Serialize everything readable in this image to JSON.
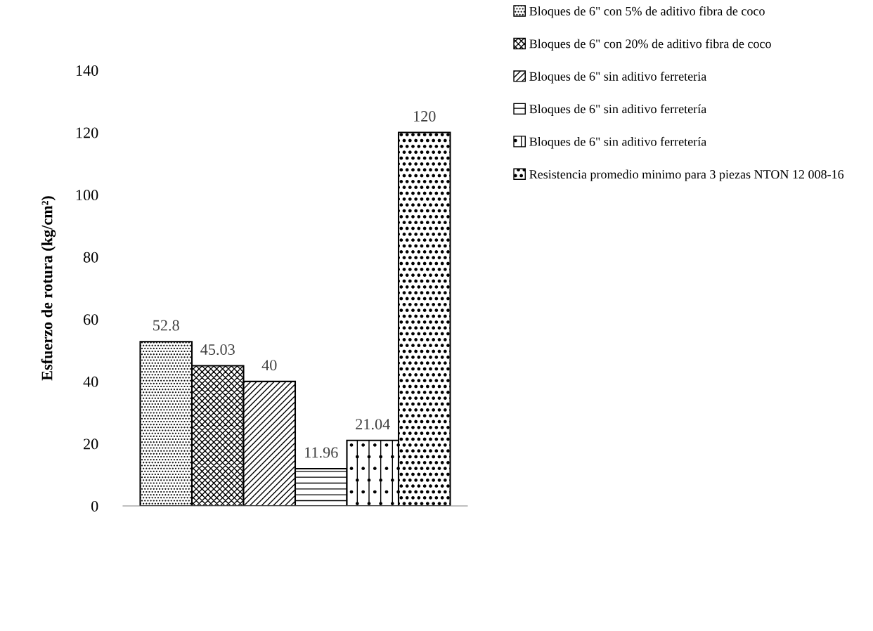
{
  "chart_data": {
    "type": "bar",
    "ylabel": "Esfuerzo de rotura (kg/cm²)",
    "categories": [
      null
    ],
    "series": [
      {
        "name": "Bloques de 6\" con 5% de aditivo fibra de coco",
        "color": "#000000",
        "values": [
          52.8
        ]
      },
      {
        "name": "Bloques de 6\" con 20% de aditivo fibra de coco",
        "color": "#000000",
        "values": [
          45.03
        ]
      },
      {
        "name": "Bloques de 6\" sin aditivo ferreteria",
        "color": "#000000",
        "values": [
          40
        ]
      },
      {
        "name": "Bloques de 6\" sin aditivo ferretería",
        "color": "#000000",
        "values": [
          11.96
        ]
      },
      {
        "name": "Bloques de 6\" sin aditivo ferretería",
        "color": "#000000",
        "values": [
          21.04
        ]
      },
      {
        "name": "Resistencia promedio minimo para 3 piezas NTON 12 008-16",
        "color": "#000000",
        "values": [
          120
        ]
      }
    ],
    "ylim": [
      0,
      140
    ],
    "yticks": [
      0,
      20,
      40,
      60,
      80,
      100,
      120,
      140
    ],
    "grid": false,
    "legend": "top right",
    "data_labels": true
  }
}
